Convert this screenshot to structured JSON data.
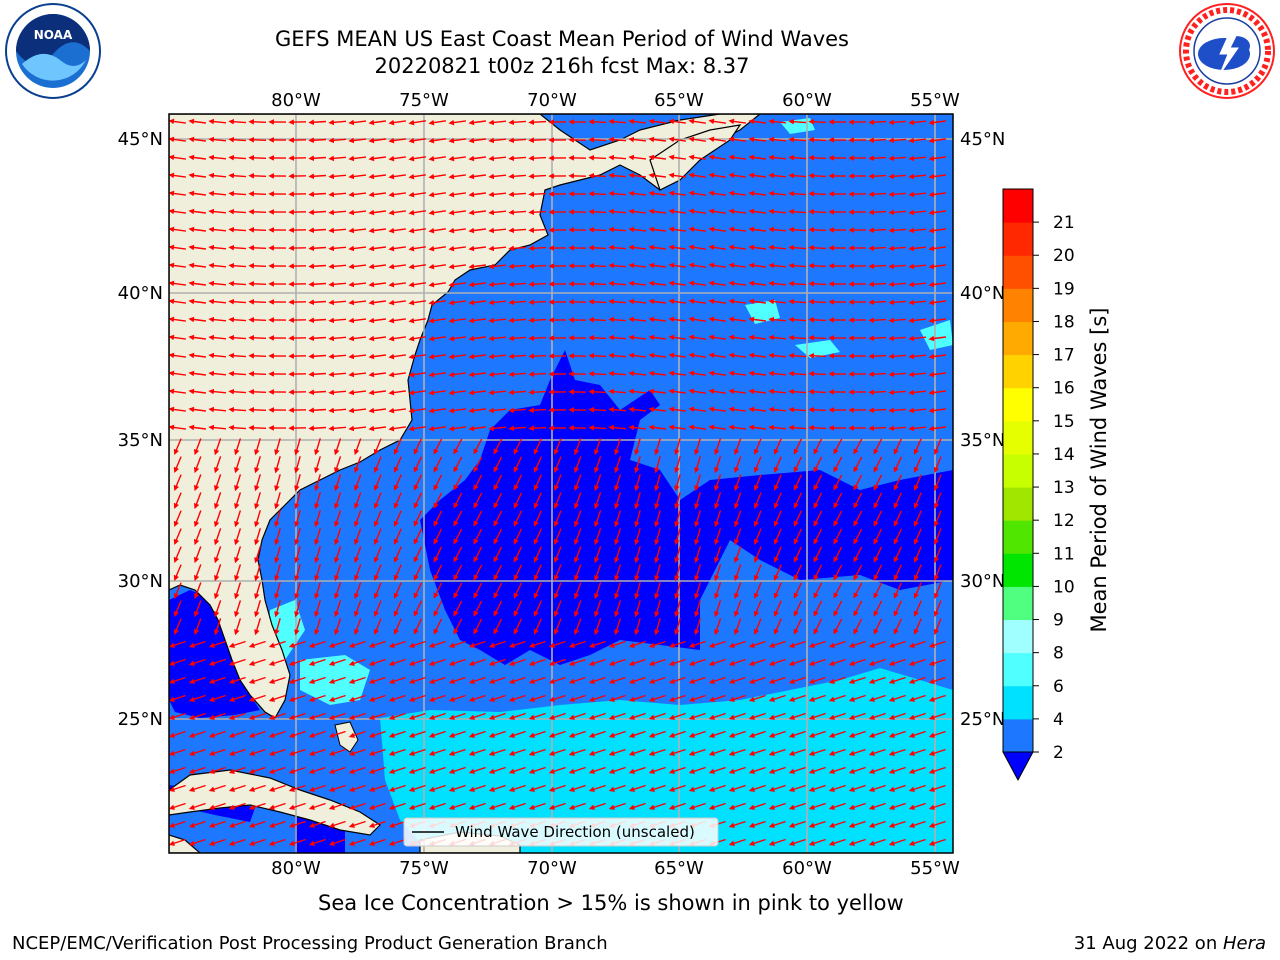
{
  "header": {
    "title_line1": "GEFS MEAN US East Coast Mean Period of Wind Waves",
    "title_line2": "20220821 t00z 216h fcst   Max: 8.37"
  },
  "logos": {
    "left": {
      "text": "NOAA",
      "icon": "noaa-logo"
    },
    "right": {
      "text": "NATIONAL WEATHER SERVICE",
      "icon": "nws-logo"
    }
  },
  "map": {
    "lon_labels": [
      "80°W",
      "75°W",
      "70°W",
      "65°W",
      "60°W",
      "55°W"
    ],
    "lat_labels": [
      "45°N",
      "40°N",
      "35°N",
      "30°N",
      "25°N"
    ],
    "legend_label": "Wind Wave Direction (unscaled)",
    "land_color": "#efefdc",
    "arrow_color": "#ff0000"
  },
  "colorbar": {
    "label": "Mean Period of Wind Waves [s]",
    "ticks": [
      "2",
      "4",
      "6",
      "8",
      "9",
      "10",
      "11",
      "12",
      "13",
      "14",
      "15",
      "16",
      "17",
      "18",
      "19",
      "20",
      "21"
    ],
    "colors": [
      "#1e78ff",
      "#00e0ff",
      "#50ffff",
      "#a0ffff",
      "#50ff80",
      "#00e600",
      "#50e600",
      "#a0e600",
      "#c8ff00",
      "#e6ff00",
      "#ffff00",
      "#ffd200",
      "#ffaa00",
      "#ff8200",
      "#ff5000",
      "#ff2800",
      "#ff0000"
    ],
    "extend_color": "#0000ff"
  },
  "footer": {
    "sea_ice_note": "Sea Ice Concentration > 15% is shown in pink to yellow",
    "credit": "NCEP/EMC/Verification Post Processing Product Generation Branch",
    "date": "31 Aug 2022 on ",
    "host": "Hera"
  }
}
